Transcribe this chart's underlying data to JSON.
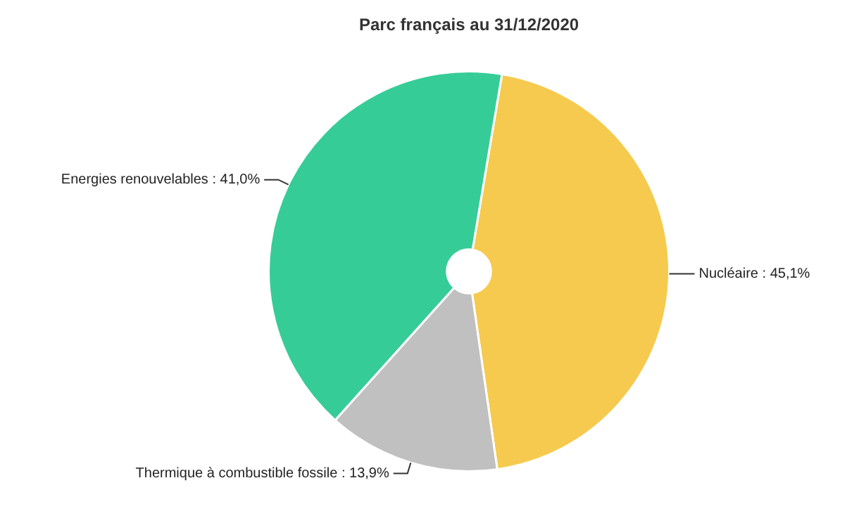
{
  "chart_data": {
    "type": "pie",
    "title": "Parc français au 31/12/2020",
    "categories": [
      "Nucléaire",
      "Thermique à combustible fossile",
      "Energies renouvelables"
    ],
    "values": [
      45.1,
      13.9,
      41.0
    ],
    "value_labels": [
      "45,1%",
      "13,9%",
      "41,0%"
    ],
    "colors": [
      "#f6ca4e",
      "#c0c0c0",
      "#36cc98"
    ],
    "legend": false
  }
}
